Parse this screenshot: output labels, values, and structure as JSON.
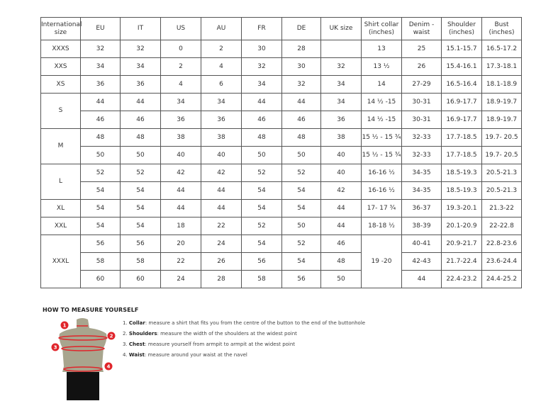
{
  "headers": [
    "International size",
    "EU",
    "IT",
    "US",
    "AU",
    "FR",
    "DE",
    "UK size",
    "Shirt collar (inches)",
    "Denim - waist",
    "Shoulder (inches)",
    "Bust (inches)"
  ],
  "groups": [
    {
      "size": "XXXS",
      "rows": [
        [
          "32",
          "32",
          "0",
          "2",
          "30",
          "28",
          "",
          "13",
          "25",
          "15.1-15.7",
          "16.5-17.2"
        ]
      ]
    },
    {
      "size": "XXS",
      "rows": [
        [
          "34",
          "34",
          "2",
          "4",
          "32",
          "30",
          "32",
          "13 ½",
          "26",
          "15.4-16.1",
          "17.3-18.1"
        ]
      ]
    },
    {
      "size": "XS",
      "rows": [
        [
          "36",
          "36",
          "4",
          "6",
          "34",
          "32",
          "34",
          "14",
          "27-29",
          "16.5-16.4",
          "18.1-18.9"
        ]
      ]
    },
    {
      "size": "S",
      "rows": [
        [
          "44",
          "44",
          "34",
          "34",
          "44",
          "44",
          "34",
          "14 ½ -15",
          "30-31",
          "16.9-17.7",
          "18.9-19.7"
        ],
        [
          "46",
          "46",
          "36",
          "36",
          "46",
          "46",
          "36",
          "14 ½ -15",
          "30-31",
          "16.9-17.7",
          "18.9-19.7"
        ]
      ]
    },
    {
      "size": "M",
      "rows": [
        [
          "48",
          "48",
          "38",
          "38",
          "48",
          "48",
          "38",
          "15 ½ - 15 ¾",
          "32-33",
          "17.7-18.5",
          "19.7- 20.5"
        ],
        [
          "50",
          "50",
          "40",
          "40",
          "50",
          "50",
          "40",
          "15 ½ - 15 ¾",
          "32-33",
          "17.7-18.5",
          "19.7- 20.5"
        ]
      ]
    },
    {
      "size": "L",
      "rows": [
        [
          "52",
          "52",
          "42",
          "42",
          "52",
          "52",
          "40",
          "16-16 ½",
          "34-35",
          "18.5-19.3",
          "20.5-21.3"
        ],
        [
          "54",
          "54",
          "44",
          "44",
          "54",
          "54",
          "42",
          "16-16 ½",
          "34-35",
          "18.5-19.3",
          "20.5-21.3"
        ]
      ]
    },
    {
      "size": "XL",
      "rows": [
        [
          "54",
          "54",
          "44",
          "44",
          "54",
          "54",
          "44",
          "17- 17 ¾",
          "36-37",
          "19.3-20.1",
          "21.3-22"
        ]
      ]
    },
    {
      "size": "XXL",
      "rows": [
        [
          "54",
          "54",
          "18",
          "22",
          "52",
          "50",
          "44",
          "18-18 ½",
          "38-39",
          "20.1-20.9",
          "22-22.8"
        ]
      ]
    },
    {
      "size": "XXXL",
      "collar_merged": "19 -20",
      "rows": [
        [
          "56",
          "56",
          "20",
          "24",
          "54",
          "52",
          "46",
          "",
          "40-41",
          "20.9-21.7",
          "22.8-23.6"
        ],
        [
          "58",
          "58",
          "22",
          "26",
          "56",
          "54",
          "48",
          "",
          "42-43",
          "21.7-22.4",
          "23.6-24.4"
        ],
        [
          "60",
          "60",
          "24",
          "28",
          "58",
          "56",
          "50",
          "",
          "44",
          "22.4-23.2",
          "24.4-25.2"
        ]
      ]
    }
  ],
  "howto": {
    "title": "HOW TO MEASURE YOURSELF",
    "steps": [
      {
        "num": "1.",
        "term": "Collar",
        "text": ": measure a shirt that fits you from the centre of the button to the end of the buttonhole"
      },
      {
        "num": "2.",
        "term": "Shoulders",
        "text": ": measure the width of the shoulders at the widest point"
      },
      {
        "num": "3.",
        "term": "Chest",
        "text": ": measure yourself from armpit to armpit at the widest point"
      },
      {
        "num": "4.",
        "term": "Waist",
        "text": ": measure around your waist at the navel"
      }
    ],
    "markers": [
      "1",
      "2",
      "3",
      "4"
    ],
    "colors": {
      "marker": "#e0252b",
      "torso": "#a8a58e",
      "shorts": "#111111"
    }
  }
}
